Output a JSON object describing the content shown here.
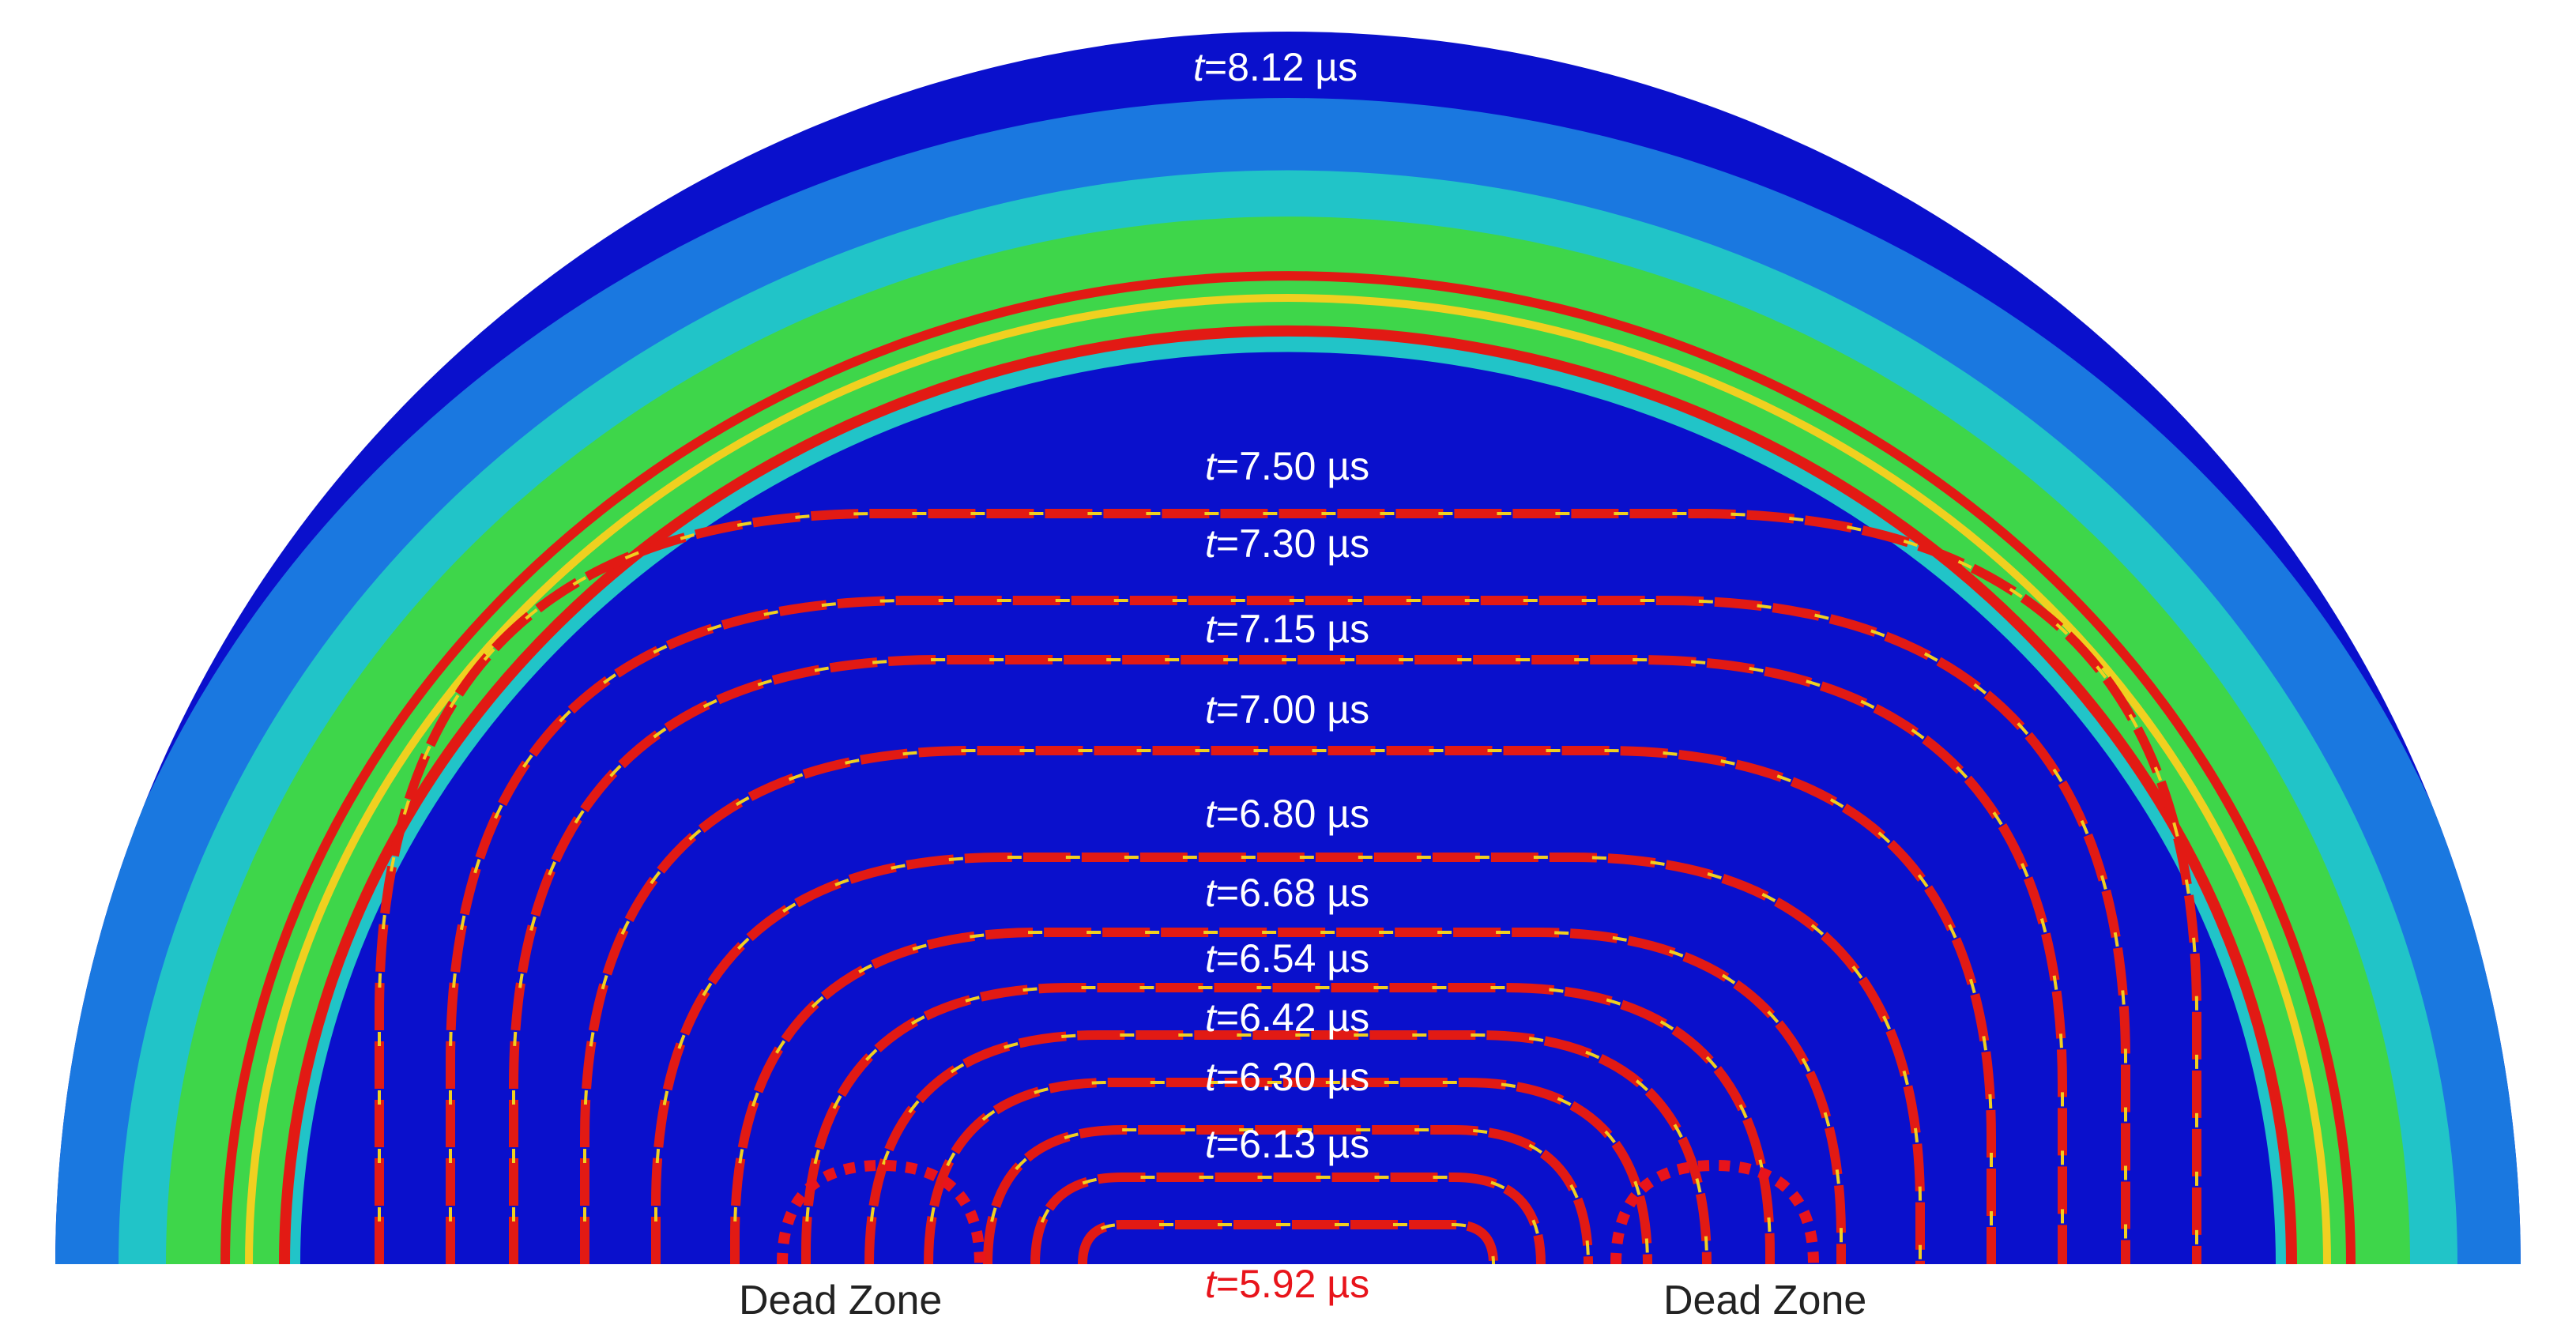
{
  "figure": {
    "colors": {
      "background": "#0a10cc",
      "band_light_blue": "#1a78e0",
      "band_cyan": "#21c4c8",
      "band_green": "#3ed64a",
      "front_red": "#e21a14",
      "front_yellow": "#f0d020",
      "dead_zone_outline": "#e8141b"
    },
    "outer_label": {
      "prefix": "t",
      "text": "=8.12 µs"
    },
    "front_labels": [
      {
        "prefix": "t",
        "text": "=7.50 µs"
      },
      {
        "prefix": "t",
        "text": "=7.30 µs"
      },
      {
        "prefix": "t",
        "text": "=7.15 µs"
      },
      {
        "prefix": "t",
        "text": "=7.00 µs"
      },
      {
        "prefix": "t",
        "text": "=6.80 µs"
      },
      {
        "prefix": "t",
        "text": "=6.68 µs"
      },
      {
        "prefix": "t",
        "text": "=6.54 µs"
      },
      {
        "prefix": "t",
        "text": "=6.42 µs"
      },
      {
        "prefix": "t",
        "text": "=6.30 µs"
      },
      {
        "prefix": "t",
        "text": "=6.13 µs"
      }
    ],
    "initial_label": {
      "prefix": "t",
      "text": "=5.92 µs"
    },
    "dead_zones": [
      {
        "label": "Dead Zone"
      },
      {
        "label": "Dead Zone"
      }
    ]
  }
}
